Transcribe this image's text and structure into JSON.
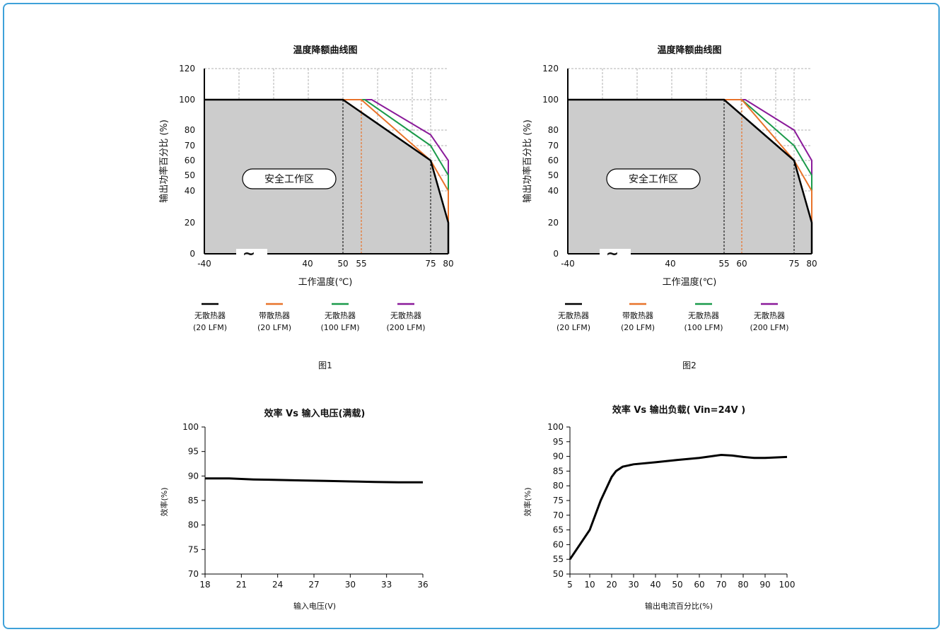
{
  "colors": {
    "frame": "#3ea1d9",
    "series1": "#000000",
    "series2": "#e8732a",
    "series3": "#1a9a4a",
    "series4": "#8a1a9a",
    "safe_area": "#cccccc"
  },
  "captions": [
    "图1",
    "图2"
  ],
  "chart_data": [
    {
      "type": "line",
      "title": "温度降额曲线图",
      "xlabel": "工作温度(℃)",
      "ylabel": "输出功率百分比 (%)",
      "xticks": [
        "-40",
        "40",
        "50",
        "55",
        "75",
        "80"
      ],
      "yticks": [
        "0",
        "20",
        "40",
        "50",
        "60",
        "70",
        "80",
        "100",
        "120"
      ],
      "area_label": "安全工作区",
      "break_mark": "~",
      "legend": [
        {
          "line1": "无散热器",
          "line2": "(20 LFM)"
        },
        {
          "line1": "带散热器",
          "line2": "(20 LFM)"
        },
        {
          "line1": "无散热器",
          "line2": "(100 LFM)"
        },
        {
          "line1": "无散热器",
          "line2": "(200 LFM)"
        }
      ],
      "series": [
        {
          "x": [
            -40,
            50,
            75,
            80
          ],
          "y": [
            100,
            100,
            60,
            20
          ]
        },
        {
          "x": [
            -40,
            55,
            75,
            80
          ],
          "y": [
            100,
            100,
            60,
            40
          ]
        },
        {
          "x": [
            -40,
            56,
            75,
            80
          ],
          "y": [
            100,
            100,
            70,
            50
          ]
        },
        {
          "x": [
            -40,
            58,
            75,
            80
          ],
          "y": [
            100,
            100,
            77,
            60
          ]
        }
      ],
      "ylim": [
        0,
        120
      ]
    },
    {
      "type": "line",
      "title": "温度降额曲线图",
      "xlabel": "工作温度(℃)",
      "ylabel": "输出功率百分比 (%)",
      "xticks": [
        "-40",
        "40",
        "55",
        "60",
        "75",
        "80"
      ],
      "yticks": [
        "0",
        "20",
        "40",
        "50",
        "60",
        "70",
        "80",
        "100",
        "120"
      ],
      "area_label": "安全工作区",
      "break_mark": "~",
      "legend": [
        {
          "line1": "无散热器",
          "line2": "(20 LFM)"
        },
        {
          "line1": "带散热器",
          "line2": "(20 LFM)"
        },
        {
          "line1": "无散热器",
          "line2": "(100 LFM)"
        },
        {
          "line1": "无散热器",
          "line2": "(200 LFM)"
        }
      ],
      "series": [
        {
          "x": [
            -40,
            55,
            75,
            80
          ],
          "y": [
            100,
            100,
            60,
            20
          ]
        },
        {
          "x": [
            -40,
            60,
            75,
            80
          ],
          "y": [
            100,
            100,
            60,
            40
          ]
        },
        {
          "x": [
            -40,
            60,
            75,
            80
          ],
          "y": [
            100,
            100,
            70,
            50
          ]
        },
        {
          "x": [
            -40,
            61,
            75,
            80
          ],
          "y": [
            100,
            100,
            80,
            60
          ]
        }
      ],
      "ylim": [
        0,
        120
      ]
    },
    {
      "type": "line",
      "title": "效率 Vs 输入电压(满载)",
      "xlabel": "输入电压(V)",
      "ylabel": "效率(%)",
      "xticks": [
        "18",
        "21",
        "24",
        "27",
        "30",
        "33",
        "36"
      ],
      "yticks": [
        "70",
        "75",
        "80",
        "85",
        "90",
        "95",
        "100"
      ],
      "x": [
        18,
        20,
        22,
        24,
        26,
        28,
        30,
        32,
        34,
        36
      ],
      "y": [
        89.5,
        89.5,
        89.3,
        89.2,
        89.1,
        89.0,
        88.9,
        88.8,
        88.7,
        88.7
      ],
      "xlim": [
        18,
        36
      ],
      "ylim": [
        70,
        100
      ]
    },
    {
      "type": "line",
      "title": "效率 Vs 输出负载( Vin=24V )",
      "xlabel": "输出电流百分比(%)",
      "ylabel": "效率(%)",
      "xticks": [
        "5",
        "10",
        "20",
        "30",
        "40",
        "50",
        "60",
        "70",
        "80",
        "90",
        "100"
      ],
      "yticks": [
        "50",
        "55",
        "60",
        "65",
        "70",
        "75",
        "80",
        "85",
        "90",
        "95",
        "100"
      ],
      "x": [
        5,
        10,
        15,
        20,
        22,
        25,
        30,
        40,
        50,
        60,
        65,
        70,
        75,
        80,
        85,
        90,
        100
      ],
      "y": [
        55,
        65,
        75,
        83,
        85,
        86.5,
        87.3,
        88,
        88.8,
        89.5,
        90,
        90.5,
        90.3,
        89.8,
        89.5,
        89.5,
        89.8
      ],
      "xlim": [
        5,
        100
      ],
      "ylim": [
        50,
        100
      ]
    }
  ]
}
